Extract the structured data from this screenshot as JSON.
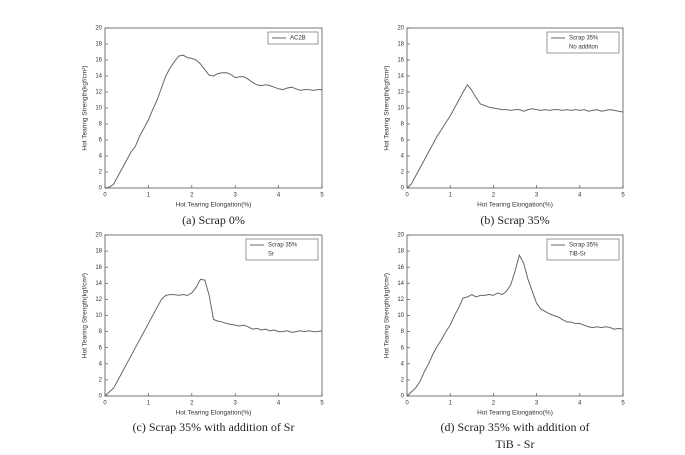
{
  "chart_data": [
    {
      "type": "line",
      "caption": [
        "(a) Scrap 0%"
      ],
      "xlabel": "Hot Tearing Elongation(%)",
      "ylabel": "Hot Tearing Strength(kgf/cm²)",
      "xlim": [
        0,
        5
      ],
      "xticks": [
        0,
        1,
        2,
        3,
        4,
        5
      ],
      "ylim": [
        0,
        20
      ],
      "yticks": [
        0,
        2,
        4,
        6,
        8,
        10,
        12,
        14,
        16,
        18,
        20
      ],
      "x": [
        0,
        0.1,
        0.2,
        0.3,
        0.4,
        0.5,
        0.6,
        0.7,
        0.8,
        0.9,
        1,
        1.1,
        1.2,
        1.3,
        1.4,
        1.5,
        1.6,
        1.7,
        1.8,
        1.9,
        2,
        2.1,
        2.2,
        2.3,
        2.4,
        2.5,
        2.6,
        2.7,
        2.8,
        2.9,
        3,
        3.1,
        3.2,
        3.3,
        3.4,
        3.5,
        3.6,
        3.7,
        3.8,
        3.9,
        4,
        4.1,
        4.2,
        4.3,
        4.4,
        4.5,
        4.6,
        4.7,
        4.8,
        4.9,
        5
      ],
      "series": [
        {
          "name": "AC2B",
          "color": "#666666",
          "values": [
            0,
            0.1,
            0.5,
            1.5,
            2.5,
            3.5,
            4.5,
            5.2,
            6.5,
            7.5,
            8.5,
            9.8,
            11,
            12.5,
            14,
            15,
            15.8,
            16.5,
            16.6,
            16.3,
            16.2,
            16,
            15.5,
            14.8,
            14.1,
            14,
            14.3,
            14.4,
            14.4,
            14.2,
            13.8,
            13.9,
            13.9,
            13.6,
            13.2,
            12.9,
            12.8,
            12.9,
            12.8,
            12.6,
            12.4,
            12.3,
            12.5,
            12.6,
            12.4,
            12.2,
            12.3,
            12.3,
            12.2,
            12.3,
            12.3
          ]
        }
      ]
    },
    {
      "type": "line",
      "caption": [
        "(b) Scrap 35%"
      ],
      "xlabel": "Hot Tearing Elongation(%)",
      "ylabel": "Hot Tearing Strength(kgf/cm²)",
      "legend_note": "No additon",
      "xlim": [
        0,
        5
      ],
      "xticks": [
        0,
        1,
        2,
        3,
        4,
        5
      ],
      "ylim": [
        0,
        20
      ],
      "yticks": [
        0,
        2,
        4,
        6,
        8,
        10,
        12,
        14,
        16,
        18,
        20
      ],
      "x": [
        0,
        0.1,
        0.2,
        0.3,
        0.4,
        0.5,
        0.6,
        0.7,
        0.8,
        0.9,
        1,
        1.1,
        1.2,
        1.3,
        1.4,
        1.5,
        1.6,
        1.7,
        1.8,
        1.9,
        2,
        2.1,
        2.2,
        2.3,
        2.4,
        2.5,
        2.6,
        2.7,
        2.8,
        2.9,
        3,
        3.1,
        3.2,
        3.3,
        3.4,
        3.5,
        3.6,
        3.7,
        3.8,
        3.9,
        4,
        4.1,
        4.2,
        4.3,
        4.4,
        4.5,
        4.6,
        4.7,
        4.8,
        4.9,
        5
      ],
      "series": [
        {
          "name": "Scrap 35%",
          "color": "#666666",
          "values": [
            0,
            0.5,
            1.5,
            2.5,
            3.5,
            4.5,
            5.5,
            6.5,
            7.3,
            8.2,
            9,
            10,
            11,
            12,
            12.9,
            12.2,
            11.3,
            10.5,
            10.3,
            10.1,
            10,
            9.9,
            9.8,
            9.8,
            9.7,
            9.8,
            9.8,
            9.6,
            9.8,
            9.9,
            9.8,
            9.7,
            9.8,
            9.7,
            9.8,
            9.8,
            9.7,
            9.8,
            9.7,
            9.8,
            9.7,
            9.8,
            9.6,
            9.7,
            9.8,
            9.6,
            9.7,
            9.8,
            9.7,
            9.6,
            9.5
          ]
        }
      ]
    },
    {
      "type": "line",
      "caption": [
        "(c) Scrap 35% with addition of Sr"
      ],
      "xlabel": "Hot Tearing Elongation(%)",
      "ylabel": "Hot Tearing Strength(kgf/cm²)",
      "legend_note": "Sr",
      "xlim": [
        0,
        5
      ],
      "xticks": [
        0,
        1,
        2,
        3,
        4,
        5
      ],
      "ylim": [
        0,
        20
      ],
      "yticks": [
        0,
        2,
        4,
        6,
        8,
        10,
        12,
        14,
        16,
        18,
        20
      ],
      "x": [
        0,
        0.1,
        0.2,
        0.3,
        0.4,
        0.5,
        0.6,
        0.7,
        0.8,
        0.9,
        1,
        1.1,
        1.2,
        1.3,
        1.4,
        1.5,
        1.6,
        1.7,
        1.8,
        1.9,
        2,
        2.1,
        2.2,
        2.3,
        2.4,
        2.5,
        2.6,
        2.7,
        2.8,
        2.9,
        3,
        3.1,
        3.2,
        3.3,
        3.4,
        3.5,
        3.6,
        3.7,
        3.8,
        3.9,
        4,
        4.1,
        4.2,
        4.3,
        4.4,
        4.5,
        4.6,
        4.7,
        4.8,
        4.9,
        5
      ],
      "series": [
        {
          "name": "Scrap 35%",
          "color": "#666666",
          "values": [
            0,
            0.5,
            1,
            2,
            3,
            4,
            5,
            6,
            7,
            8,
            9,
            10,
            11,
            12,
            12.5,
            12.6,
            12.6,
            12.5,
            12.6,
            12.5,
            12.8,
            13.5,
            14.5,
            14.4,
            12.5,
            9.5,
            9.3,
            9.2,
            9,
            8.9,
            8.8,
            8.7,
            8.8,
            8.6,
            8.3,
            8.4,
            8.2,
            8.3,
            8.1,
            8.2,
            8,
            8,
            8.1,
            7.9,
            8,
            8.1,
            8,
            8.1,
            8,
            8,
            8.1
          ]
        }
      ]
    },
    {
      "type": "line",
      "caption": [
        "(d) Scrap 35% with addition of",
        "TiB - Sr"
      ],
      "xlabel": "Hot Tearing Elongatino(%)",
      "ylabel": "Hot Tearing Strength(kgf/cm²)",
      "legend_note": "TiB-Sr",
      "xlim": [
        0,
        5
      ],
      "xticks": [
        0,
        1,
        2,
        3,
        4,
        5
      ],
      "ylim": [
        0,
        20
      ],
      "yticks": [
        0,
        2,
        4,
        6,
        8,
        10,
        12,
        14,
        16,
        18,
        20
      ],
      "x": [
        0,
        0.1,
        0.2,
        0.3,
        0.4,
        0.5,
        0.6,
        0.7,
        0.8,
        0.9,
        1,
        1.1,
        1.2,
        1.3,
        1.4,
        1.5,
        1.6,
        1.7,
        1.8,
        1.9,
        2,
        2.1,
        2.2,
        2.3,
        2.4,
        2.5,
        2.6,
        2.7,
        2.8,
        2.9,
        3,
        3.1,
        3.2,
        3.3,
        3.4,
        3.5,
        3.6,
        3.7,
        3.8,
        3.9,
        4,
        4.1,
        4.2,
        4.3,
        4.4,
        4.5,
        4.6,
        4.7,
        4.8,
        4.9,
        5
      ],
      "series": [
        {
          "name": "Scrap 35%",
          "color": "#666666",
          "values": [
            0,
            0.5,
            1,
            1.8,
            3,
            4,
            5.2,
            6.2,
            7,
            8,
            8.8,
            10,
            11,
            12.2,
            12.3,
            12.6,
            12.3,
            12.5,
            12.5,
            12.6,
            12.5,
            12.8,
            12.6,
            13,
            13.8,
            15.5,
            17.5,
            16.5,
            14.5,
            13,
            11.5,
            10.8,
            10.5,
            10.2,
            10,
            9.8,
            9.5,
            9.2,
            9.2,
            9,
            9,
            8.8,
            8.6,
            8.5,
            8.6,
            8.5,
            8.6,
            8.5,
            8.3,
            8.4,
            8.3
          ]
        }
      ]
    }
  ]
}
